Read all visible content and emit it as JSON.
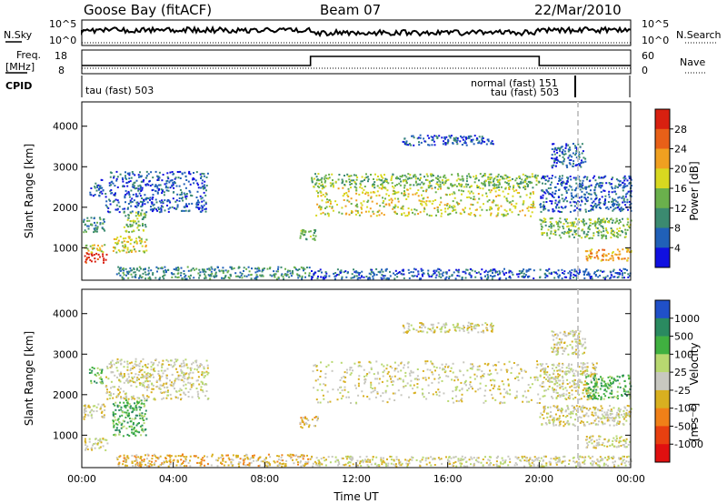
{
  "header": {
    "station": "Goose Bay (fitACF)",
    "beam": "Beam 07",
    "date": "22/Mar/2010"
  },
  "noise_panel": {
    "left_label": "N.Sky",
    "left_ticks": [
      "10^5",
      "10^0"
    ],
    "right_ticks": [
      "10^5",
      "10^0"
    ],
    "right_label": "N.Search"
  },
  "freq_panel": {
    "left_label_1": "Freq.",
    "left_label_2": "[MHz]",
    "left_ticks": [
      "18",
      "8"
    ],
    "right_ticks": [
      "60",
      "0"
    ],
    "right_label": "Nave"
  },
  "cpid_panel": {
    "label": "CPID",
    "entries": [
      "tau (fast) 503",
      "normal (fast) 151",
      "tau (fast) 503"
    ]
  },
  "chart_data": [
    {
      "type": "heatmap",
      "name": "power",
      "ylabel": "Slant Range [km]",
      "y_ticks": [
        "1000",
        "2000",
        "3000",
        "4000"
      ],
      "ylim": [
        200,
        4600
      ],
      "xlim": [
        0,
        24
      ],
      "colorbar": {
        "label": "Power [dB]",
        "ticks": [
          "4",
          "8",
          "12",
          "16",
          "20",
          "24",
          "28"
        ],
        "colors": [
          "#1010e0",
          "#2060b8",
          "#3b8a70",
          "#6ab04c",
          "#d8d820",
          "#f0a020",
          "#e86018",
          "#d82010"
        ]
      },
      "scatter_regions": [
        {
          "t0": 0.1,
          "t1": 1.1,
          "r0": 650,
          "r1": 900,
          "level": 7
        },
        {
          "t0": 0.1,
          "t1": 1.0,
          "r0": 900,
          "r1": 1100,
          "level": 4
        },
        {
          "t0": 0.0,
          "t1": 1.0,
          "r0": 1400,
          "r1": 1800,
          "level": 2
        },
        {
          "t0": 0.3,
          "t1": 0.9,
          "r0": 2300,
          "r1": 2700,
          "level": 1
        },
        {
          "t0": 1.3,
          "t1": 2.8,
          "r0": 900,
          "r1": 1300,
          "level": 4
        },
        {
          "t0": 1.8,
          "t1": 2.8,
          "r0": 1400,
          "r1": 1900,
          "level": 3
        },
        {
          "t0": 1.0,
          "t1": 5.5,
          "r0": 1900,
          "r1": 2900,
          "level": 1
        },
        {
          "t0": 1.5,
          "t1": 10.0,
          "r0": 250,
          "r1": 550,
          "level": 2
        },
        {
          "t0": 9.5,
          "t1": 10.3,
          "r0": 1200,
          "r1": 1500,
          "level": 3
        },
        {
          "t0": 10.0,
          "t1": 20.0,
          "r0": 2500,
          "r1": 2850,
          "level": 3
        },
        {
          "t0": 10.2,
          "t1": 19.8,
          "r0": 1800,
          "r1": 2500,
          "level": 4
        },
        {
          "t0": 14.0,
          "t1": 18.0,
          "r0": 3550,
          "r1": 3800,
          "level": 1
        },
        {
          "t0": 10.0,
          "t1": 24.0,
          "r0": 250,
          "r1": 500,
          "level": 1
        },
        {
          "t0": 20.0,
          "t1": 24.0,
          "r0": 1250,
          "r1": 1750,
          "level": 3
        },
        {
          "t0": 20.0,
          "t1": 24.0,
          "r0": 1900,
          "r1": 2800,
          "level": 1
        },
        {
          "t0": 22.0,
          "t1": 24.0,
          "r0": 700,
          "r1": 1000,
          "level": 5
        },
        {
          "t0": 20.5,
          "t1": 22.0,
          "r0": 3000,
          "r1": 3600,
          "level": 1
        }
      ]
    },
    {
      "type": "heatmap",
      "name": "velocity",
      "ylabel": "Slant Range [km]",
      "xlabel": "Time UT",
      "y_ticks": [
        "1000",
        "2000",
        "3000",
        "4000"
      ],
      "x_ticks": [
        "00:00",
        "04:00",
        "08:00",
        "12:00",
        "16:00",
        "20:00",
        "00:00"
      ],
      "ylim": [
        200,
        4600
      ],
      "xlim": [
        0,
        24
      ],
      "colorbar": {
        "label": "Velocity",
        "unit": "[m s⁻¹]",
        "ticks": [
          "1000",
          "500",
          "100",
          "25",
          "-25",
          "-100",
          "-500",
          "-1000"
        ],
        "colors": [
          "#2050c8",
          "#2a8a60",
          "#40b040",
          "#b8d870",
          "#c8c8c0",
          "#d8b020",
          "#f08018",
          "#e84010",
          "#e01010"
        ]
      },
      "scatter_regions": [
        {
          "t0": 0.1,
          "t1": 1.1,
          "r0": 650,
          "r1": 950,
          "level": 4
        },
        {
          "t0": 0.0,
          "t1": 1.0,
          "r0": 1400,
          "r1": 1800,
          "level": 4
        },
        {
          "t0": 0.3,
          "t1": 0.9,
          "r0": 2300,
          "r1": 2700,
          "level": 2
        },
        {
          "t0": 1.3,
          "t1": 2.8,
          "r0": 1000,
          "r1": 1900,
          "level": 2
        },
        {
          "t0": 1.0,
          "t1": 5.5,
          "r0": 1900,
          "r1": 2900,
          "level": 4
        },
        {
          "t0": 1.5,
          "t1": 10.0,
          "r0": 250,
          "r1": 550,
          "level": 5
        },
        {
          "t0": 9.5,
          "t1": 10.3,
          "r0": 1200,
          "r1": 1500,
          "level": 5
        },
        {
          "t0": 10.0,
          "t1": 20.0,
          "r0": 1800,
          "r1": 2850,
          "level": 4
        },
        {
          "t0": 14.0,
          "t1": 18.0,
          "r0": 3550,
          "r1": 3800,
          "level": 4
        },
        {
          "t0": 10.0,
          "t1": 24.0,
          "r0": 250,
          "r1": 500,
          "level": 4
        },
        {
          "t0": 20.0,
          "t1": 24.0,
          "r0": 1250,
          "r1": 1750,
          "level": 4
        },
        {
          "t0": 20.0,
          "t1": 22.5,
          "r0": 1900,
          "r1": 2800,
          "level": 4
        },
        {
          "t0": 22.0,
          "t1": 24.0,
          "r0": 1900,
          "r1": 2500,
          "level": 2
        },
        {
          "t0": 22.0,
          "t1": 24.0,
          "r0": 700,
          "r1": 1000,
          "level": 4
        },
        {
          "t0": 20.5,
          "t1": 22.0,
          "r0": 3000,
          "r1": 3600,
          "level": 4
        }
      ]
    }
  ]
}
